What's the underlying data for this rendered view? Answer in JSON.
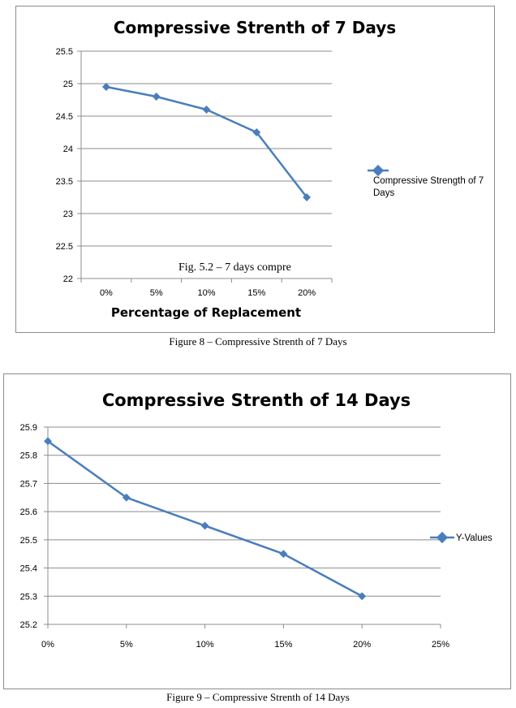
{
  "figures": [
    {
      "caption": "Figure 8 – Compressive Strenth of 7 Days",
      "chart_data": {
        "type": "line",
        "title": "Compressive Strenth of 7 Days",
        "xlabel": "Percentage of Replacement",
        "ylabel": "",
        "categories": [
          "0%",
          "5%",
          "10%",
          "15%",
          "20%"
        ],
        "series": [
          {
            "name": "Compressive Strength of 7 Days",
            "values": [
              24.95,
              24.8,
              24.6,
              24.25,
              23.25
            ]
          }
        ],
        "ylim": [
          22,
          25.5
        ],
        "yticks": [
          "22",
          "22.5",
          "23",
          "23.5",
          "24",
          "24.5",
          "25",
          "25.5"
        ],
        "annotation": "Fig. 5.2 – 7 days compre",
        "grid": true,
        "legend": "right",
        "color": "#4a7ebb"
      }
    },
    {
      "caption": "Figure 9 – Compressive Strenth of 14 Days",
      "chart_data": {
        "type": "scatter",
        "title": "Compressive Strenth of 14 Days",
        "xlabel": "",
        "ylabel": "",
        "series": [
          {
            "name": "Y-Values",
            "x": [
              0,
              0.05,
              0.1,
              0.15,
              0.2
            ],
            "y": [
              25.85,
              25.65,
              25.55,
              25.45,
              25.3
            ]
          }
        ],
        "xlim": [
          0,
          0.25
        ],
        "xticks": [
          "0%",
          "5%",
          "10%",
          "15%",
          "20%",
          "25%"
        ],
        "ylim": [
          25.2,
          25.9
        ],
        "yticks": [
          "25.2",
          "25.3",
          "25.4",
          "25.5",
          "25.6",
          "25.7",
          "25.8",
          "25.9"
        ],
        "grid": true,
        "legend": "right",
        "color": "#4a7ebb"
      }
    }
  ]
}
